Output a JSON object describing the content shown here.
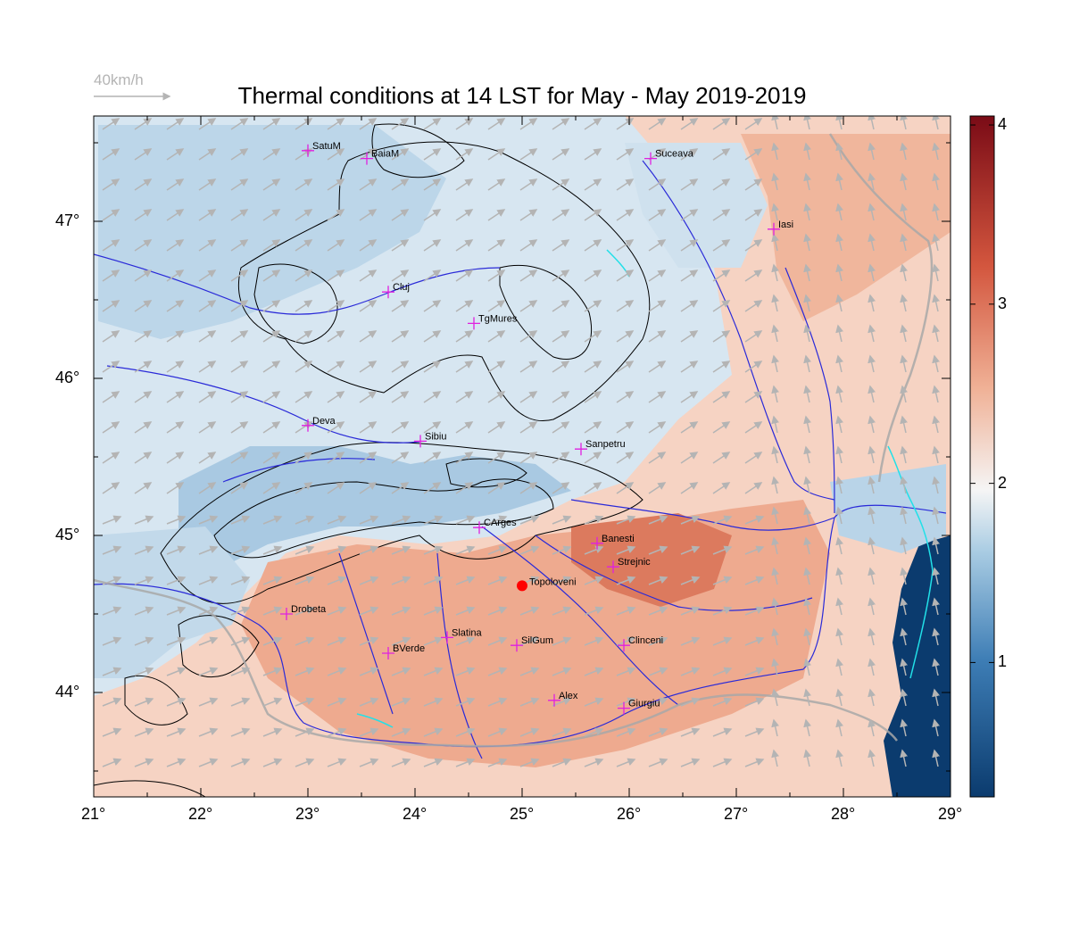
{
  "title": "Thermal conditions at 14 LST for May - May  2019-2019",
  "wind_scale": {
    "label": "40km/h"
  },
  "axes": {
    "lon_ticks": [
      "21°",
      "22°",
      "23°",
      "24°",
      "25°",
      "26°",
      "27°",
      "28°",
      "29°"
    ],
    "lat_ticks": [
      "47°",
      "46°",
      "45°",
      "44°"
    ]
  },
  "colorbar": {
    "ticks": [
      "4",
      "3",
      "2",
      "1"
    ],
    "low_color": "#0b3b6e",
    "mid_color": "#f5f5f5",
    "high_color": "#7a0b16"
  },
  "highlight_station": {
    "name": "Topoloveni",
    "color": "#ff0000"
  },
  "stations": [
    {
      "name": "SatuM",
      "lon": 23.0,
      "lat": 47.45
    },
    {
      "name": "BaiaM",
      "lon": 23.55,
      "lat": 47.4
    },
    {
      "name": "Suceava",
      "lon": 26.2,
      "lat": 47.4
    },
    {
      "name": "Iasi",
      "lon": 27.35,
      "lat": 46.95
    },
    {
      "name": "Cluj",
      "lon": 23.75,
      "lat": 46.55
    },
    {
      "name": "TgMures",
      "lon": 24.55,
      "lat": 46.35
    },
    {
      "name": "Deva",
      "lon": 23.0,
      "lat": 45.7
    },
    {
      "name": "Sibiu",
      "lon": 24.05,
      "lat": 45.6
    },
    {
      "name": "Sanpetru",
      "lon": 25.55,
      "lat": 45.55
    },
    {
      "name": "CArges",
      "lon": 24.6,
      "lat": 45.05
    },
    {
      "name": "Banesti",
      "lon": 25.7,
      "lat": 44.95
    },
    {
      "name": "Strejnic",
      "lon": 25.85,
      "lat": 44.8
    },
    {
      "name": "Drobeta",
      "lon": 22.8,
      "lat": 44.5
    },
    {
      "name": "Slatina",
      "lon": 24.3,
      "lat": 44.35
    },
    {
      "name": "SilGum",
      "lon": 24.95,
      "lat": 44.3
    },
    {
      "name": "Clinceni",
      "lon": 25.95,
      "lat": 44.3
    },
    {
      "name": "BVerde",
      "lon": 23.75,
      "lat": 44.25
    },
    {
      "name": "Alex",
      "lon": 25.3,
      "lat": 43.95
    },
    {
      "name": "Giurgiu",
      "lon": 25.95,
      "lat": 43.9
    }
  ],
  "topoloveni": {
    "lon": 25.0,
    "lat": 44.68
  }
}
